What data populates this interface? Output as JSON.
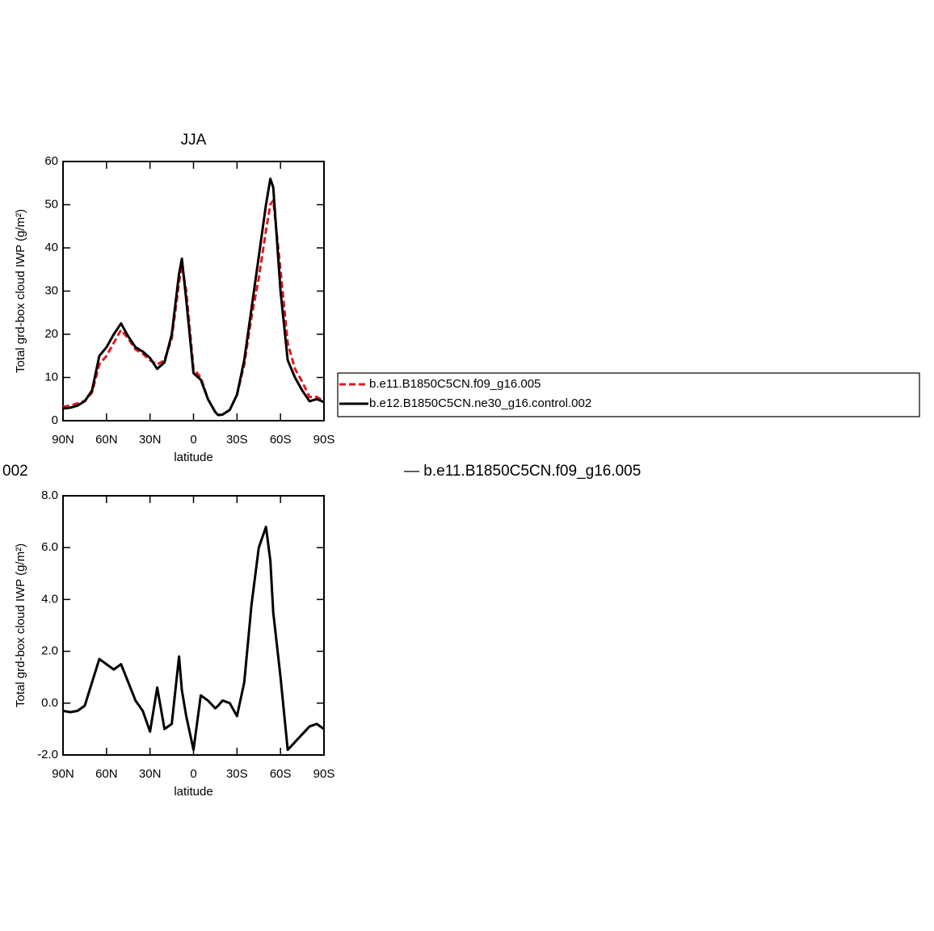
{
  "chart_data": [
    {
      "type": "line",
      "title": "JJA",
      "x_label": "latitude",
      "y_label": "Total grd-box cloud IWP (g/m²)",
      "x": [
        90,
        85,
        80,
        75,
        70,
        65,
        60,
        55,
        50,
        45,
        40,
        35,
        30,
        25,
        20,
        15,
        10,
        8,
        5,
        0,
        -5,
        -10,
        -15,
        -17,
        -20,
        -25,
        -30,
        -35,
        -40,
        -45,
        -50,
        -53,
        -55,
        -60,
        -65,
        -70,
        -75,
        -80,
        -85,
        -90
      ],
      "xlim": [
        90,
        -90
      ],
      "xticks": [
        {
          "value": 90,
          "label": "90N"
        },
        {
          "value": 60,
          "label": "60N"
        },
        {
          "value": 30,
          "label": "30N"
        },
        0,
        {
          "value": -30,
          "label": "30S"
        },
        {
          "value": -60,
          "label": "60S"
        },
        {
          "value": -90,
          "label": "90S"
        }
      ],
      "ylim": [
        0,
        60
      ],
      "yticks": [
        0,
        10,
        20,
        30,
        40,
        50,
        60
      ],
      "series": [
        {
          "name": "b.e11.B1850C5CN.f09_g16.005",
          "color": "#e8161b",
          "dashed": true,
          "values": [
            3.2,
            3.5,
            4,
            4.6,
            6.5,
            13,
            15,
            18,
            21,
            19,
            16.5,
            15.5,
            14,
            13,
            14,
            19,
            32,
            36,
            30,
            12,
            10,
            5,
            2,
            1.3,
            1.4,
            2.5,
            6,
            13,
            24,
            33,
            44,
            50,
            51,
            35,
            18,
            12,
            9,
            5.5,
            5.5,
            4.5
          ]
        },
        {
          "name": "b.e12.B1850C5CN.ne30_g16.control.002",
          "color": "#000000",
          "dashed": false,
          "values": [
            2.8,
            3.0,
            3.5,
            4.5,
            7,
            15,
            17,
            20,
            22.5,
            19.5,
            17,
            16,
            14.5,
            12,
            13.5,
            20,
            34,
            37.5,
            28,
            11,
            9.5,
            5,
            2,
            1.3,
            1.4,
            2.5,
            6,
            14,
            26,
            38,
            50,
            56,
            54,
            30,
            14,
            10,
            7,
            4.5,
            5,
            4.3
          ]
        }
      ]
    },
    {
      "type": "line",
      "left_title": "002",
      "right_title": "— b.e11.B1850C5CN.f09_g16.005",
      "x_label": "latitude",
      "y_label": "Total grd-box cloud IWP (g/m²)",
      "x": [
        90,
        85,
        80,
        75,
        70,
        65,
        60,
        55,
        50,
        45,
        40,
        35,
        30,
        25,
        20,
        15,
        10,
        8,
        5,
        0,
        -5,
        -10,
        -15,
        -17,
        -20,
        -25,
        -30,
        -35,
        -40,
        -45,
        -50,
        -53,
        -55,
        -60,
        -65,
        -70,
        -75,
        -80,
        -85,
        -90
      ],
      "xlim": [
        90,
        -90
      ],
      "xticks": [
        {
          "value": 90,
          "label": "90N"
        },
        {
          "value": 60,
          "label": "60N"
        },
        {
          "value": 30,
          "label": "30N"
        },
        0,
        {
          "value": -30,
          "label": "30S"
        },
        {
          "value": -60,
          "label": "60S"
        },
        {
          "value": -90,
          "label": "90S"
        }
      ],
      "ylim": [
        -2,
        8
      ],
      "yticks": [
        {
          "value": -2,
          "label": "-2.0"
        },
        {
          "value": 0,
          "label": "0.0"
        },
        {
          "value": 2,
          "label": "2.0"
        },
        {
          "value": 4,
          "label": "4.0"
        },
        {
          "value": 6,
          "label": "6.0"
        },
        {
          "value": 8,
          "label": "8.0"
        }
      ],
      "series": [
        {
          "color": "#000000",
          "dashed": false,
          "values": [
            -0.3,
            -0.35,
            -0.3,
            -0.1,
            0.8,
            1.7,
            1.5,
            1.3,
            1.5,
            0.8,
            0.1,
            -0.3,
            -1.1,
            0.6,
            -1.0,
            -0.8,
            1.8,
            0.5,
            -0.5,
            -1.8,
            0.3,
            0.1,
            -0.2,
            -0.1,
            0.1,
            0.0,
            -0.5,
            0.8,
            3.8,
            6.0,
            6.8,
            5.5,
            3.5,
            1.0,
            -1.8,
            -1.5,
            -1.2,
            -0.9,
            -0.8,
            -1.0
          ]
        }
      ]
    }
  ]
}
